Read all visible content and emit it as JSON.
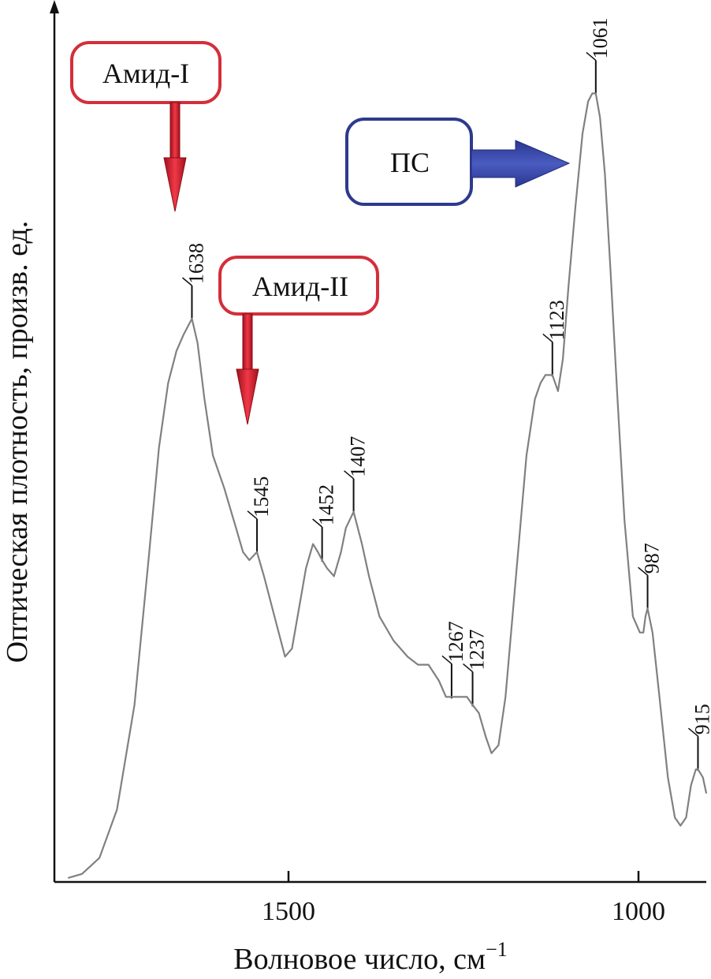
{
  "chart_data": {
    "type": "line",
    "title": "",
    "xlabel": "Волновое число, см",
    "xlabel_superscript": "−1",
    "ylabel": "Оптическая плотность, произв. ед.",
    "x_reversed": true,
    "xlim": [
      1840,
      910
    ],
    "ylim": [
      0,
      1
    ],
    "x_ticks": [
      1500,
      1000
    ],
    "x_tick_labels": [
      "1500",
      "1000"
    ],
    "grid": false,
    "series": [
      {
        "color": "#808080",
        "x": [
          1815,
          1795,
          1770,
          1745,
          1720,
          1700,
          1685,
          1672,
          1660,
          1650,
          1644,
          1638,
          1630,
          1620,
          1608,
          1592,
          1575,
          1565,
          1556,
          1545,
          1535,
          1520,
          1505,
          1495,
          1485,
          1475,
          1465,
          1458,
          1452,
          1445,
          1435,
          1425,
          1418,
          1407,
          1395,
          1385,
          1370,
          1350,
          1330,
          1315,
          1300,
          1285,
          1275,
          1267,
          1255,
          1245,
          1237,
          1228,
          1218,
          1210,
          1200,
          1190,
          1175,
          1160,
          1148,
          1140,
          1133,
          1123,
          1115,
          1108,
          1100,
          1090,
          1080,
          1072,
          1066,
          1061,
          1055,
          1048,
          1040,
          1030,
          1020,
          1008,
          998,
          993,
          990,
          987,
          980,
          970,
          958,
          948,
          940,
          932,
          925,
          918,
          915,
          908,
          903
        ],
        "y": [
          0.005,
          0.01,
          0.03,
          0.09,
          0.22,
          0.4,
          0.54,
          0.62,
          0.66,
          0.68,
          0.69,
          0.7,
          0.67,
          0.6,
          0.53,
          0.49,
          0.44,
          0.41,
          0.4,
          0.41,
          0.38,
          0.33,
          0.28,
          0.29,
          0.34,
          0.39,
          0.42,
          0.41,
          0.4,
          0.39,
          0.38,
          0.41,
          0.44,
          0.46,
          0.42,
          0.38,
          0.33,
          0.3,
          0.28,
          0.27,
          0.27,
          0.25,
          0.23,
          0.23,
          0.23,
          0.23,
          0.22,
          0.21,
          0.18,
          0.16,
          0.17,
          0.23,
          0.38,
          0.53,
          0.6,
          0.62,
          0.63,
          0.63,
          0.61,
          0.65,
          0.74,
          0.84,
          0.93,
          0.97,
          0.98,
          0.98,
          0.95,
          0.88,
          0.76,
          0.6,
          0.45,
          0.33,
          0.31,
          0.31,
          0.33,
          0.34,
          0.31,
          0.23,
          0.13,
          0.08,
          0.07,
          0.08,
          0.12,
          0.14,
          0.14,
          0.13,
          0.11
        ]
      }
    ],
    "peak_labels": [
      {
        "x": 1638,
        "y": 0.7,
        "label": "1638"
      },
      {
        "x": 1545,
        "y": 0.41,
        "label": "1545"
      },
      {
        "x": 1452,
        "y": 0.4,
        "label": "1452"
      },
      {
        "x": 1407,
        "y": 0.46,
        "label": "1407"
      },
      {
        "x": 1267,
        "y": 0.23,
        "label": "1267"
      },
      {
        "x": 1237,
        "y": 0.22,
        "label": "1237"
      },
      {
        "x": 1123,
        "y": 0.63,
        "label": "1123"
      },
      {
        "x": 1061,
        "y": 0.98,
        "label": "1061"
      },
      {
        "x": 987,
        "y": 0.34,
        "label": "987"
      },
      {
        "x": 915,
        "y": 0.14,
        "label": "915"
      }
    ],
    "annotations": [
      {
        "text": "Амид-I",
        "box_color": "#d32f3a",
        "arrow_color": "#e03040",
        "arrow_direction": "down",
        "points_to_x": 1638
      },
      {
        "text": "Амид-II",
        "box_color": "#d32f3a",
        "arrow_color": "#e03040",
        "arrow_direction": "down",
        "points_to_x": 1545
      },
      {
        "text": "ПС",
        "box_color": "#2e3a8c",
        "arrow_color": "#3848a8",
        "arrow_direction": "right",
        "points_to_x": 1061
      }
    ]
  }
}
